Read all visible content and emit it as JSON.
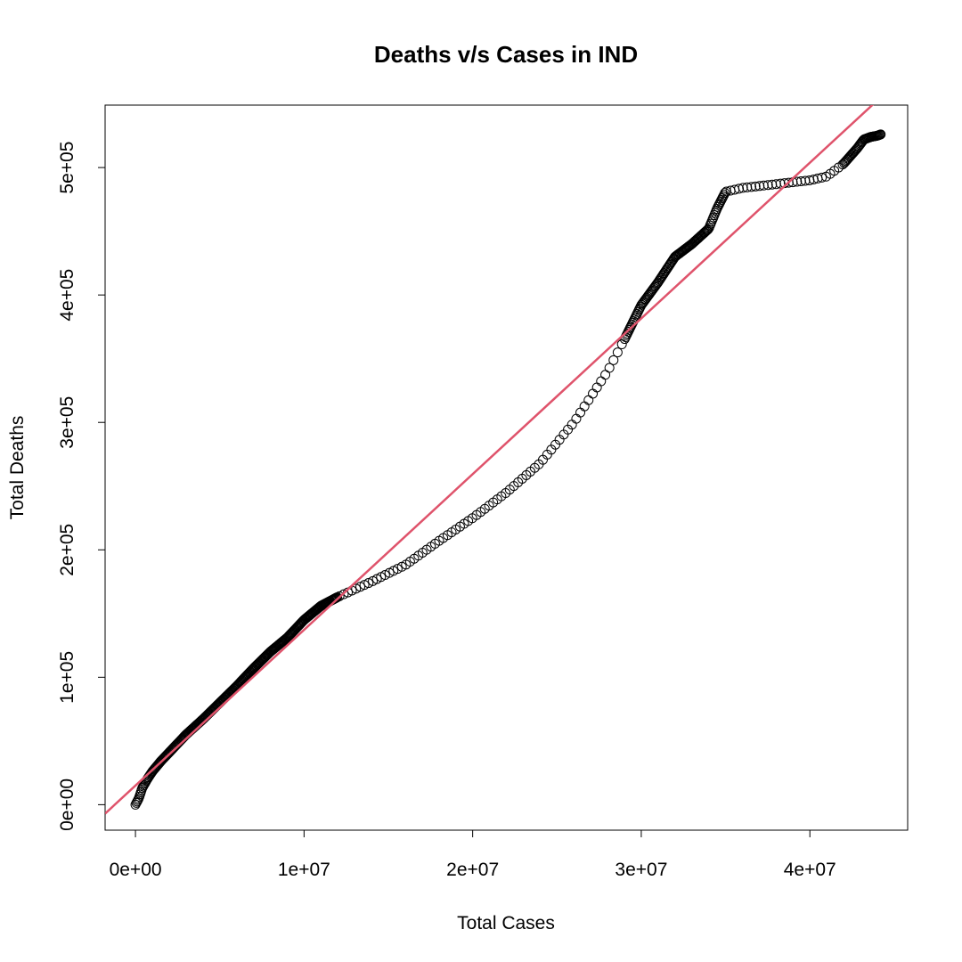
{
  "chart_data": {
    "type": "scatter",
    "title": "Deaths v/s Cases in IND",
    "xlabel": "Total Cases",
    "ylabel": "Total Deaths",
    "xlim": [
      -1800000,
      45800000
    ],
    "ylim": [
      -20000,
      549000
    ],
    "x_ticks": [
      0,
      10000000,
      20000000,
      30000000,
      40000000
    ],
    "x_tick_labels": [
      "0e+00",
      "1e+07",
      "2e+07",
      "3e+07",
      "4e+07"
    ],
    "y_ticks": [
      0,
      100000,
      200000,
      300000,
      400000,
      500000
    ],
    "y_tick_labels": [
      "0e+00",
      "1e+05",
      "2e+05",
      "3e+05",
      "4e+05",
      "5e+05"
    ],
    "grid": false,
    "legend": "none",
    "series": [
      {
        "marker": "open-circle",
        "color": "#000000",
        "curve": [
          [
            0,
            0
          ],
          [
            200000,
            5000
          ],
          [
            400000,
            13000
          ],
          [
            700000,
            20000
          ],
          [
            1000000,
            26000
          ],
          [
            1500000,
            34000
          ],
          [
            2000000,
            41000
          ],
          [
            3000000,
            55000
          ],
          [
            4000000,
            67000
          ],
          [
            5000000,
            80000
          ],
          [
            6000000,
            93000
          ],
          [
            7000000,
            107000
          ],
          [
            8000000,
            120000
          ],
          [
            9000000,
            131000
          ],
          [
            10000000,
            145000
          ],
          [
            11000000,
            156000
          ],
          [
            12000000,
            163000
          ],
          [
            13000000,
            169000
          ],
          [
            14000000,
            175000
          ],
          [
            16000000,
            188000
          ],
          [
            18000000,
            207000
          ],
          [
            20000000,
            225000
          ],
          [
            22000000,
            245000
          ],
          [
            24000000,
            268000
          ],
          [
            26000000,
            300000
          ],
          [
            27000000,
            320000
          ],
          [
            28000000,
            340000
          ],
          [
            29000000,
            365000
          ],
          [
            30000000,
            392000
          ],
          [
            31000000,
            410000
          ],
          [
            32000000,
            430000
          ],
          [
            33000000,
            440000
          ],
          [
            34000000,
            452000
          ],
          [
            34500000,
            468000
          ],
          [
            35000000,
            481000
          ],
          [
            36000000,
            484000
          ],
          [
            38000000,
            487000
          ],
          [
            40000000,
            490000
          ],
          [
            41000000,
            493000
          ],
          [
            42000000,
            503000
          ],
          [
            42800000,
            515000
          ],
          [
            43200000,
            522000
          ],
          [
            43600000,
            524000
          ],
          [
            44000000,
            525000
          ],
          [
            44200000,
            526000
          ]
        ],
        "points": 520
      },
      {
        "type": "line",
        "name": "",
        "color": "#DF536B",
        "intercept": 15000,
        "slope": 0.01222
      }
    ]
  }
}
